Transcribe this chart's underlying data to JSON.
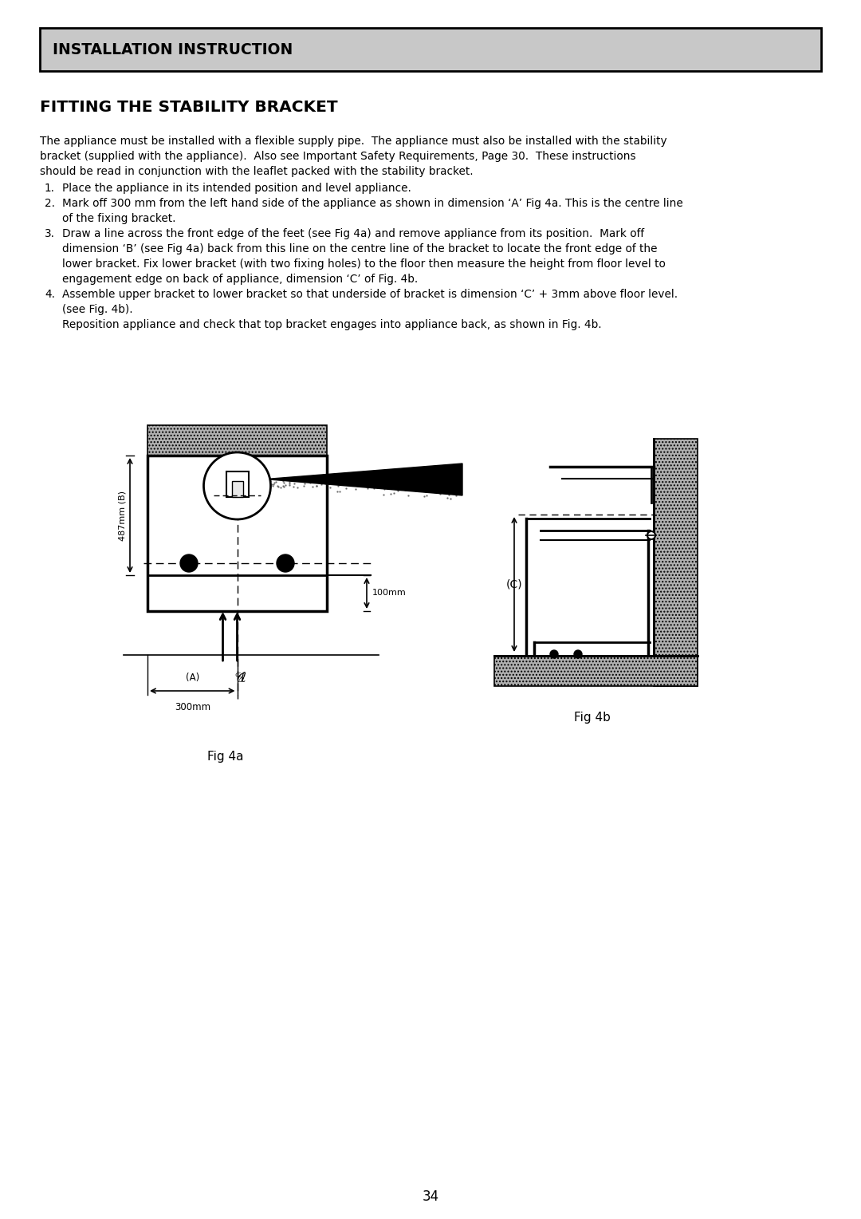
{
  "title_box": "INSTALLATION INSTRUCTION",
  "section_title": "FITTING THE STABILITY BRACKET",
  "body_text": [
    "The appliance must be installed with a flexible supply pipe.  The appliance must also be installed with the stability",
    "bracket (supplied with the appliance).  Also see Important Safety Requirements, Page 30.  These instructions",
    "should be read in conjunction with the leaflet packed with the stability bracket."
  ],
  "item1": "Place the appliance in its intended position and level appliance.",
  "item2a": "Mark off 300 mm from the left hand side of the appliance as shown in dimension ‘A’ Fig 4a. This is the centre line",
  "item2b": "of the fixing bracket.",
  "item3a": "Draw a line across the front edge of the feet (see Fig 4a) and remove appliance from its position.  Mark off",
  "item3b": "dimension ‘B’ (see Fig 4a) back from this line on the centre line of the bracket to locate the front edge of the",
  "item3c": "lower bracket. Fix lower bracket (with two fixing holes) to the floor then measure the height from floor level to",
  "item3d": "engagement edge on back of appliance, dimension ‘C’ of Fig. 4b.",
  "item4a": "Assemble upper bracket to lower bracket so that underside of bracket is dimension ‘C’ + 3mm above floor level.",
  "item4b": "(see Fig. 4b).",
  "item4c": "Reposition appliance and check that top bracket engages into appliance back, as shown in Fig. 4b.",
  "fig4a_label": "Fig 4a",
  "fig4b_label": "Fig 4b",
  "page_number": "34",
  "bg_color": "#ffffff",
  "text_color": "#000000",
  "header_bg": "#c8c8c8"
}
